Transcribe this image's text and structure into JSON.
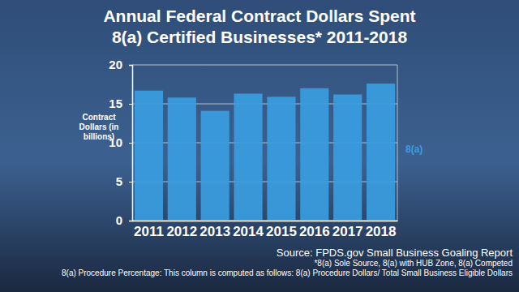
{
  "chart_data": {
    "type": "bar",
    "title": "Annual Federal Contract Dollars Spent",
    "subtitle": "8(a) Certified Businesses* 2011-2018",
    "y_label": "Contract Dollars (in billions)",
    "categories": [
      "2011",
      "2012",
      "2013",
      "2014",
      "2015",
      "2016",
      "2017",
      "2018"
    ],
    "series": [
      {
        "name": "8(a)",
        "color": "#3a9de0",
        "values": [
          16.7,
          15.8,
          14.1,
          16.3,
          15.9,
          17.0,
          16.2,
          17.6
        ]
      }
    ],
    "ylim": [
      0,
      20
    ],
    "yticks": [
      0,
      5,
      10,
      15,
      20
    ],
    "grid": true,
    "legend": "right",
    "annotations": [
      "Source: FPDS.gov Small Business Goaling Report",
      "*8(a) Sole Source, 8(a) with HUB Zone, 8(a) Competed",
      "8(a) Procedure Percentage: This column is computed as follows: 8(a) Procedure Dollars/ Total Small Business Eligible Dollars"
    ]
  }
}
